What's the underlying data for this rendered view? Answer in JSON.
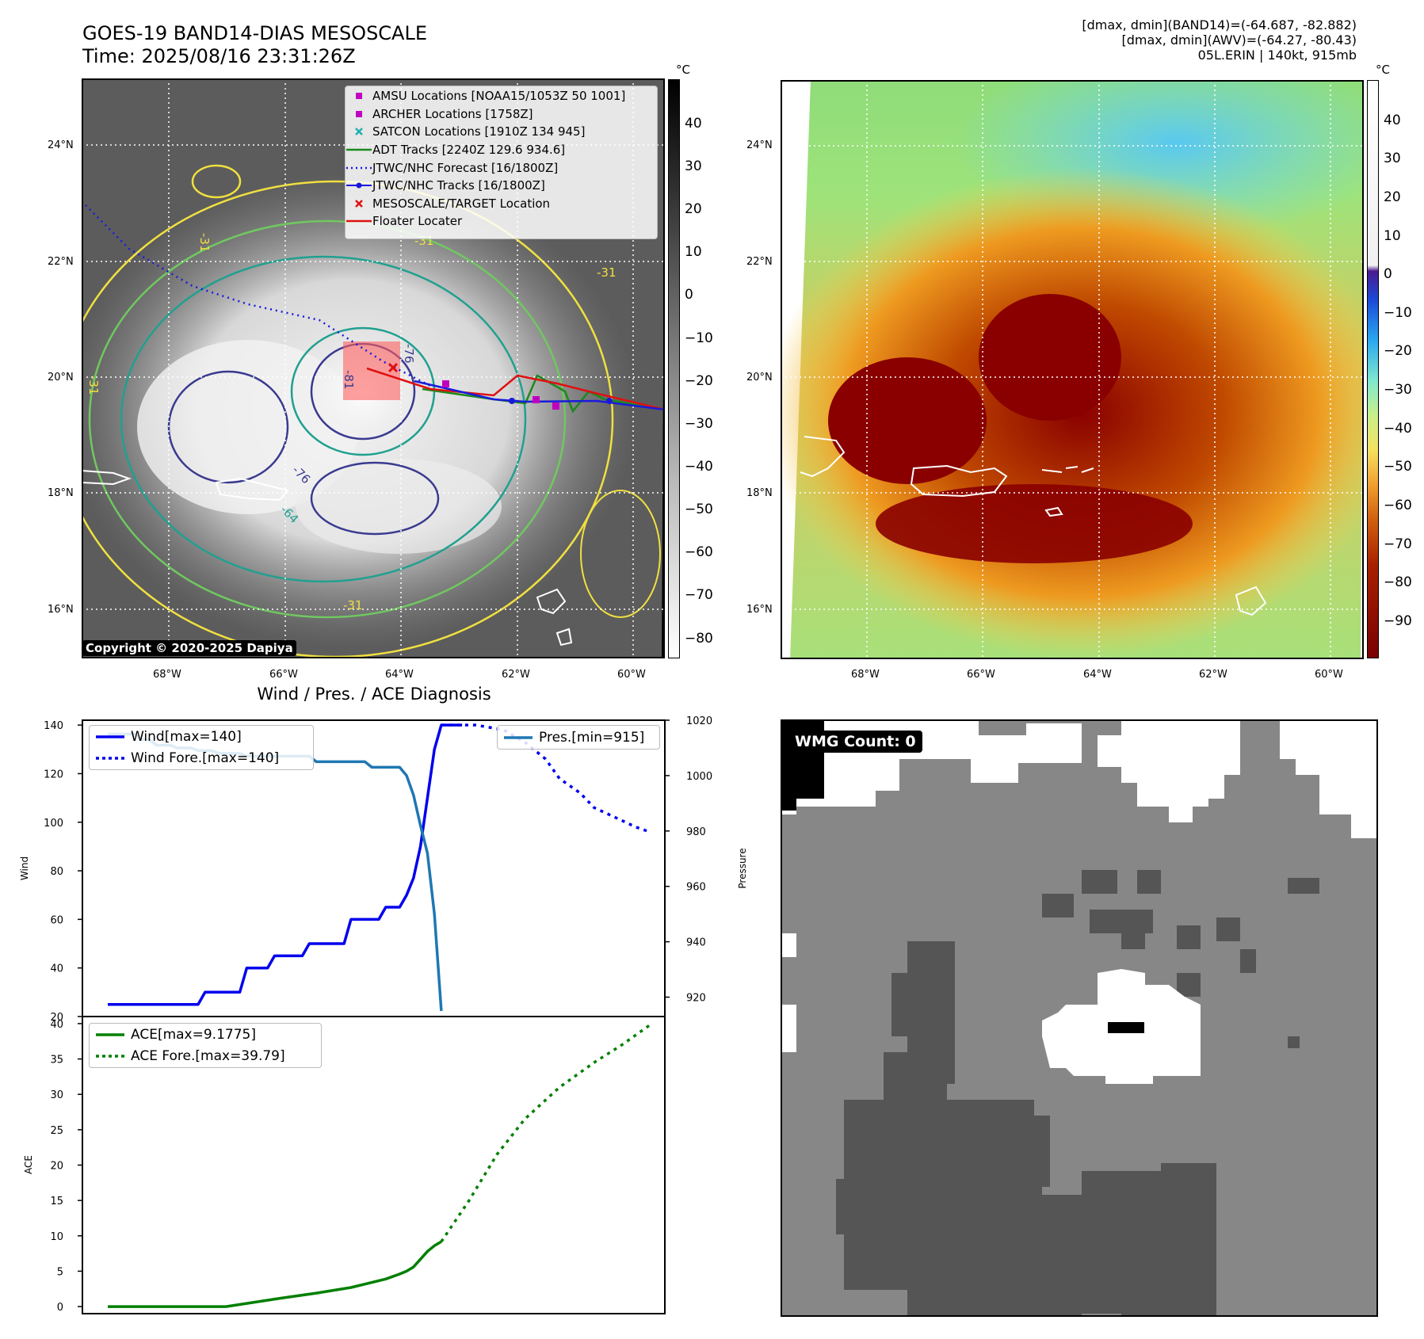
{
  "header": {
    "title_line1": "GOES-19 BAND14-DIAS MESOSCALE",
    "title_line2": "Time: 2025/08/16 23:31:26Z",
    "info_line1": "[dmax, dmin](BAND14)=(-64.687, -82.882)",
    "info_line2": "[dmax, dmin](AWV)=(-64.27, -80.43)",
    "info_line3": "05L.ERIN | 140kt, 915mb"
  },
  "map_axes": {
    "lat_labels": [
      "24°N",
      "22°N",
      "20°N",
      "18°N",
      "16°N"
    ],
    "lon_labels": [
      "68°W",
      "66°W",
      "64°W",
      "62°W",
      "60°W"
    ]
  },
  "ir_panel": {
    "copyright": "Copyright © 2020-2025 Dapiya",
    "colorbar_unit": "°C",
    "colorbar_ticks": [
      "40",
      "30",
      "20",
      "10",
      "0",
      "−10",
      "−20",
      "−30",
      "−40",
      "−50",
      "−60",
      "−70",
      "−80"
    ],
    "contour_labels": [
      "-31",
      "-31",
      "-31",
      "-31",
      "-81",
      "-76",
      "-64",
      "-76",
      "-31"
    ],
    "legend": [
      {
        "label": "AMSU Locations [NOAA15/1053Z 50 1001]",
        "symbol": "square",
        "color": "#c000c0"
      },
      {
        "label": "ARCHER Locations [1758Z]",
        "symbol": "square",
        "color": "#c000c0"
      },
      {
        "label": "SATCON Locations [1910Z 134 945]",
        "symbol": "x",
        "color": "#20b0b0"
      },
      {
        "label": "ADT Tracks [2240Z 129.6 934.6]",
        "symbol": "line",
        "color": "#1a8a1a"
      },
      {
        "label": "JTWC/NHC Forecast [16/1800Z]",
        "symbol": "dotted",
        "color": "#1a1adc"
      },
      {
        "label": "JTWC/NHC Tracks [16/1800Z]",
        "symbol": "dotline",
        "color": "#1a1adc"
      },
      {
        "label": "MESOSCALE/TARGET Location",
        "symbol": "x",
        "color": "#e01010"
      },
      {
        "label": "Floater Locater",
        "symbol": "line",
        "color": "#e01010"
      }
    ]
  },
  "awv_panel": {
    "colorbar_unit": "°C",
    "colorbar_ticks": [
      "40",
      "30",
      "20",
      "10",
      "0",
      "−10",
      "−20",
      "−30",
      "−40",
      "−50",
      "−60",
      "−70",
      "−80",
      "−90"
    ]
  },
  "wmg_panel": {
    "badge": "WMG Count: 0"
  },
  "chart_data": [
    {
      "type": "line",
      "title": "Wind / Pres. / ACE Diagnosis",
      "xlabel": "",
      "ylabel": "Wind",
      "ylabel_right": "Pressure",
      "ylim": [
        20,
        142
      ],
      "ylim_right": [
        913,
        1020
      ],
      "yticks": [
        20,
        40,
        60,
        80,
        100,
        120,
        140
      ],
      "yticks_right": [
        920,
        940,
        960,
        980,
        1000,
        1020
      ],
      "legend_left": [
        "Wind[max=140]",
        "Wind Fore.[max=140]"
      ],
      "legend_right": [
        "Pres.[min=915]"
      ],
      "series": [
        {
          "name": "Wind[max=140]",
          "axis": "left",
          "style": "solid",
          "color": "#0000ee",
          "x": [
            0,
            13,
            14,
            19,
            20,
            21,
            22,
            23,
            24,
            28,
            29,
            34,
            35,
            39,
            40,
            42,
            43,
            44,
            45,
            46,
            47,
            48,
            49,
            50,
            51
          ],
          "values": [
            25,
            25,
            30,
            30,
            40,
            40,
            40,
            40,
            45,
            45,
            50,
            50,
            60,
            60,
            65,
            65,
            70,
            77,
            90,
            110,
            130,
            140,
            140,
            140,
            140
          ]
        },
        {
          "name": "Wind Fore.[max=140]",
          "axis": "left",
          "style": "dotted",
          "color": "#0000ee",
          "x": [
            48,
            53,
            57,
            60,
            63,
            65,
            68,
            70,
            73,
            76,
            78
          ],
          "values": [
            140,
            140,
            138,
            133,
            126,
            118,
            112,
            106,
            102,
            98,
            96
          ]
        },
        {
          "name": "Pres.[min=915]",
          "axis": "right",
          "style": "solid",
          "color": "#1f77b4",
          "x": [
            0,
            4,
            5,
            6,
            7,
            8,
            9,
            10,
            11,
            12,
            13,
            14,
            15,
            16,
            17,
            18,
            19,
            20,
            21,
            22,
            23,
            24,
            25,
            26,
            27,
            28,
            29,
            30,
            31,
            32,
            33,
            34,
            35,
            36,
            37,
            38,
            39,
            40,
            41,
            42,
            43,
            44,
            45,
            46,
            47,
            48
          ],
          "values": [
            1015,
            1015,
            1013,
            1013,
            1011,
            1011,
            1011,
            1010,
            1010,
            1010,
            1009,
            1009,
            1009,
            1008,
            1008,
            1008,
            1008,
            1007,
            1007,
            1007,
            1007,
            1007,
            1007,
            1007,
            1007,
            1007,
            1007,
            1005,
            1005,
            1005,
            1005,
            1005,
            1005,
            1005,
            1005,
            1003,
            1003,
            1003,
            1003,
            1003,
            1000,
            993,
            982,
            972,
            950,
            915
          ]
        }
      ]
    },
    {
      "type": "line",
      "title": "",
      "xlabel": "",
      "ylabel": "ACE",
      "ylim": [
        -1,
        41
      ],
      "yticks": [
        0,
        5,
        10,
        15,
        20,
        25,
        30,
        35,
        40
      ],
      "legend": [
        "ACE[max=9.1775]",
        "ACE Fore.[max=39.79]"
      ],
      "series": [
        {
          "name": "ACE[max=9.1775]",
          "style": "solid",
          "color": "#008000",
          "x": [
            0,
            17,
            25,
            30,
            35,
            40,
            42,
            43,
            44,
            45,
            46,
            47,
            48
          ],
          "values": [
            0,
            0,
            1.2,
            1.9,
            2.7,
            3.9,
            4.6,
            5.0,
            5.6,
            6.7,
            7.8,
            8.6,
            9.18
          ]
        },
        {
          "name": "ACE Fore.[max=39.79]",
          "style": "dotted",
          "color": "#008000",
          "x": [
            48,
            52,
            56,
            60,
            65,
            70,
            74,
            78
          ],
          "values": [
            9.18,
            15,
            21.5,
            26.5,
            31,
            34.5,
            37,
            39.79
          ]
        }
      ]
    }
  ]
}
